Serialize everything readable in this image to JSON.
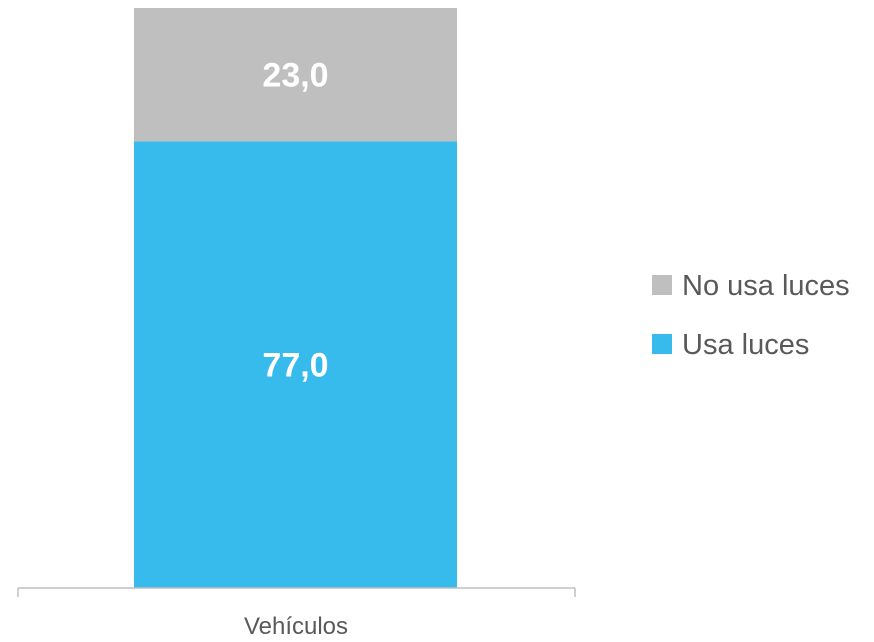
{
  "chart_data": {
    "type": "bar",
    "stacked": true,
    "categories": [
      "Vehículos"
    ],
    "series": [
      {
        "name": "Usa luces",
        "values": [
          77.0
        ],
        "color": "#37BAEC",
        "label": "77,0"
      },
      {
        "name": "No usa luces",
        "values": [
          23.0
        ],
        "color": "#BFBFBF",
        "label": "23,0"
      }
    ],
    "ylim": [
      0,
      100
    ],
    "grid": false,
    "legend": "right",
    "legend_entries": [
      "No usa luces",
      "Usa luces"
    ]
  }
}
